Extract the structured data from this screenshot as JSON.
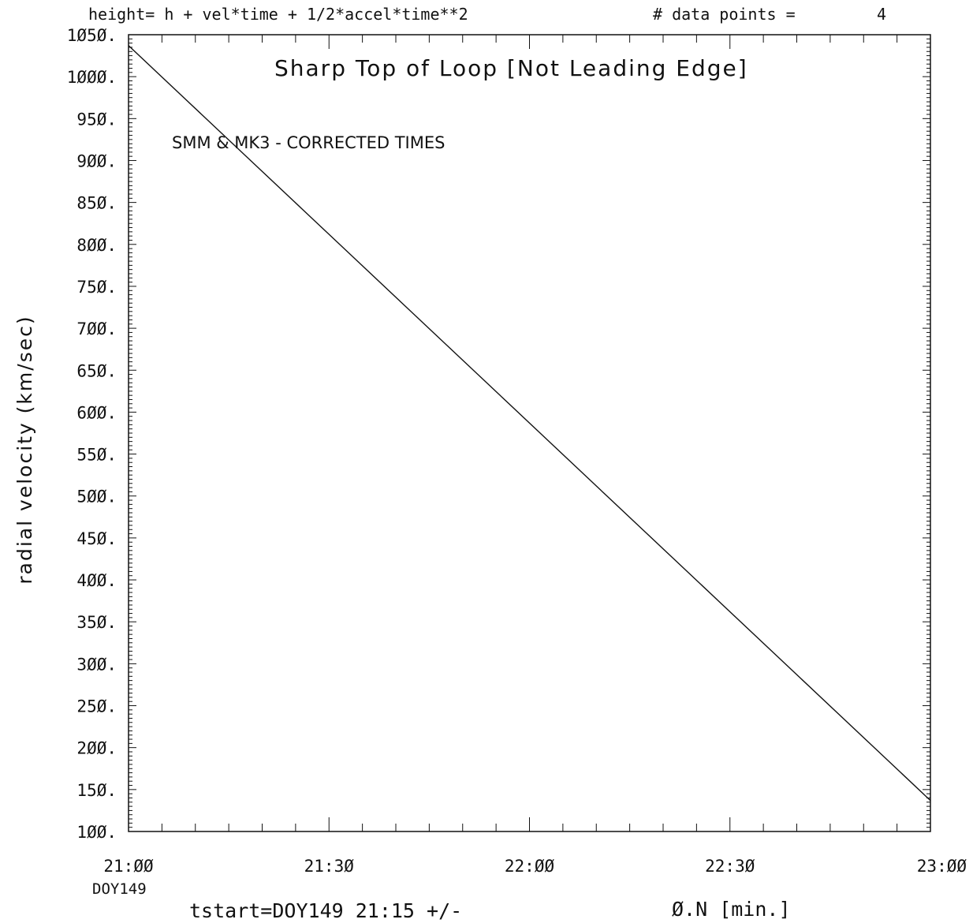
{
  "header": {
    "formula": "height= h + vel*time + 1/2*accel*time**2",
    "points_label": "# data points =",
    "points_value": "4"
  },
  "chart_data": {
    "type": "line",
    "title": "Sharp Top of Loop [Not Leading Edge]",
    "annotation": "SMM & MK3 - CORRECTED TIMES",
    "ylabel": "radial velocity (km/sec)",
    "xlabel": "tstart=DOY149 21:15 +/-",
    "xlabel_suffix": "Ø.N [min.]",
    "x_sub_label": "DOY149",
    "ylim": [
      100,
      1050
    ],
    "xlim": [
      "21:00",
      "23:00"
    ],
    "grid": false,
    "yticks": [
      "1Ø5Ø.",
      "1ØØØ.",
      "95Ø.",
      "9ØØ.",
      "85Ø.",
      "8ØØ.",
      "75Ø.",
      "7ØØ.",
      "65Ø.",
      "6ØØ.",
      "55Ø.",
      "5ØØ.",
      "45Ø.",
      "4ØØ.",
      "35Ø.",
      "3ØØ.",
      "25Ø.",
      "2ØØ.",
      "15Ø.",
      "1ØØ."
    ],
    "xticks": [
      "21:ØØ",
      "21:3Ø",
      "22:ØØ",
      "22:3Ø",
      "23:ØØ"
    ],
    "series": [
      {
        "x": [
          "21:00",
          "23:00"
        ],
        "y": [
          1037,
          137
        ]
      }
    ]
  }
}
